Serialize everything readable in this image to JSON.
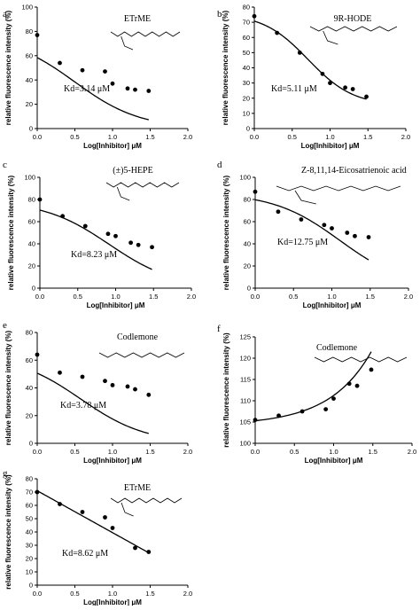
{
  "chart_data": [
    {
      "panel": "a",
      "type": "scatter",
      "compound": "ETrME",
      "kd_text": "Kd=3.14 μM",
      "xlabel": "Log[Inhibitor] μM",
      "ylabel": "relative fluorescence intensity (%)",
      "xlim": [
        0,
        2
      ],
      "ylim": [
        0,
        100
      ],
      "xticks": [
        0.0,
        0.5,
        1.0,
        1.5,
        2.0
      ],
      "yticks": [
        0,
        20,
        40,
        60,
        80,
        100
      ],
      "x": [
        0.0,
        0.3,
        0.6,
        0.9,
        1.0,
        1.2,
        1.3,
        1.48
      ],
      "y": [
        77,
        54,
        48,
        47,
        37,
        33,
        32,
        31
      ],
      "fit": {
        "model": "hyperbolic",
        "bottom": 0,
        "top": 77,
        "kd": 3.14
      }
    },
    {
      "panel": "b",
      "type": "scatter",
      "compound": "9R-HODE",
      "kd_text": "Kd=5.11 μM",
      "xlabel": "Log[Inhibitor] μM",
      "ylabel": "relative fluorescence intensity (%)",
      "xlim": [
        0,
        2
      ],
      "ylim": [
        0,
        80
      ],
      "xticks": [
        0.0,
        0.5,
        1.0,
        1.5,
        2.0
      ],
      "yticks": [
        0,
        10,
        20,
        30,
        40,
        50,
        60,
        70,
        80
      ],
      "x": [
        0.0,
        0.3,
        0.6,
        0.9,
        1.0,
        1.2,
        1.3,
        1.48
      ],
      "y": [
        74,
        63,
        50,
        36,
        30,
        27,
        26,
        21
      ],
      "fit": {
        "model": "sigmoid",
        "bottom": 15,
        "top": 76,
        "x50": 0.71,
        "hill": 1.45
      }
    },
    {
      "panel": "c",
      "type": "scatter",
      "compound": "(±)5-HEPE",
      "kd_text": "Kd=8.23 μM",
      "xlabel": "Log[Inhibitor] μM",
      "ylabel": "relative fluorescence intensity (%)",
      "xlim": [
        0,
        2
      ],
      "ylim": [
        0,
        100
      ],
      "xticks": [
        0.0,
        0.5,
        1.0,
        1.5,
        2.0
      ],
      "yticks": [
        0,
        20,
        40,
        60,
        80,
        100
      ],
      "x": [
        0.0,
        0.3,
        0.6,
        0.9,
        1.0,
        1.2,
        1.3,
        1.48
      ],
      "y": [
        80,
        65,
        56,
        49,
        47,
        41,
        39,
        37
      ],
      "fit": {
        "model": "hyperbolic",
        "bottom": 0,
        "top": 79,
        "kd": 8.23
      }
    },
    {
      "panel": "d",
      "type": "scatter",
      "compound": "Z-8,11,14-Eicosatrienoic acid",
      "kd_text": "Kd=12.75 μM",
      "xlabel": "Log[Inhibitor] μM",
      "ylabel": "relative fluorescence intensity (%)",
      "xlim": [
        0,
        2
      ],
      "ylim": [
        0,
        100
      ],
      "xticks": [
        0.0,
        0.5,
        1.0,
        1.5,
        2.0
      ],
      "yticks": [
        0,
        20,
        40,
        60,
        80,
        100
      ],
      "x": [
        0.0,
        0.3,
        0.6,
        0.9,
        1.0,
        1.2,
        1.3,
        1.48
      ],
      "y": [
        87,
        69,
        62,
        57,
        54,
        50,
        47,
        46
      ],
      "fit": {
        "model": "hyperbolic",
        "bottom": 0,
        "top": 86,
        "kd": 12.75
      }
    },
    {
      "panel": "e",
      "type": "scatter",
      "compound": "Codlemone",
      "kd_text": "Kd=3.78 μM",
      "xlabel": "Log[Inhibitor] μM",
      "ylabel": "relative fluorescence intensity (%)",
      "xlim": [
        0,
        2
      ],
      "ylim": [
        0,
        80
      ],
      "xticks": [
        0.0,
        0.5,
        1.0,
        1.5,
        2.0
      ],
      "yticks": [
        0,
        20,
        40,
        60,
        80
      ],
      "x": [
        0.0,
        0.3,
        0.6,
        0.9,
        1.0,
        1.2,
        1.3,
        1.48
      ],
      "y": [
        64,
        51,
        48,
        45,
        42,
        41,
        39,
        35
      ],
      "fit": {
        "model": "hyperbolic",
        "bottom": 0,
        "top": 64,
        "kd": 3.78
      }
    },
    {
      "panel": "f",
      "type": "scatter",
      "compound": "Codlemone",
      "kd_text": "",
      "xlabel": "Log[Inhibitor] μM",
      "ylabel": "relative fluorescence intensity (%)",
      "xlim": [
        0,
        2
      ],
      "ylim": [
        100,
        125
      ],
      "xticks": [
        0.0,
        0.5,
        1.0,
        1.5,
        2.0
      ],
      "yticks": [
        100,
        105,
        110,
        115,
        120,
        125
      ],
      "x": [
        0.0,
        0.3,
        0.6,
        0.9,
        1.0,
        1.2,
        1.3,
        1.48
      ],
      "y": [
        105.5,
        106.5,
        107.5,
        108,
        110.5,
        114,
        113.5,
        117.3
      ],
      "fit": {
        "model": "exponential",
        "a": 105.3,
        "b": 1.07,
        "k": 1.88
      }
    },
    {
      "panel": "g",
      "type": "scatter",
      "compound": "ETrME",
      "kd_text": "Kd=8.62 μM",
      "xlabel": "Log[Inhibitor] μM",
      "ylabel": "relative fluorescence intensity (%)",
      "xlim": [
        0,
        2
      ],
      "ylim": [
        0,
        80
      ],
      "xticks": [
        0.0,
        0.5,
        1.0,
        1.5,
        2.0
      ],
      "yticks": [
        0,
        10,
        20,
        30,
        40,
        50,
        60,
        70,
        80
      ],
      "x": [
        0.0,
        0.3,
        0.6,
        0.9,
        1.0,
        1.3,
        1.48
      ],
      "y": [
        70,
        61,
        55,
        51,
        43,
        28,
        25
      ],
      "fit": {
        "model": "linear",
        "intercept": 71,
        "slope": -31.5
      }
    }
  ]
}
